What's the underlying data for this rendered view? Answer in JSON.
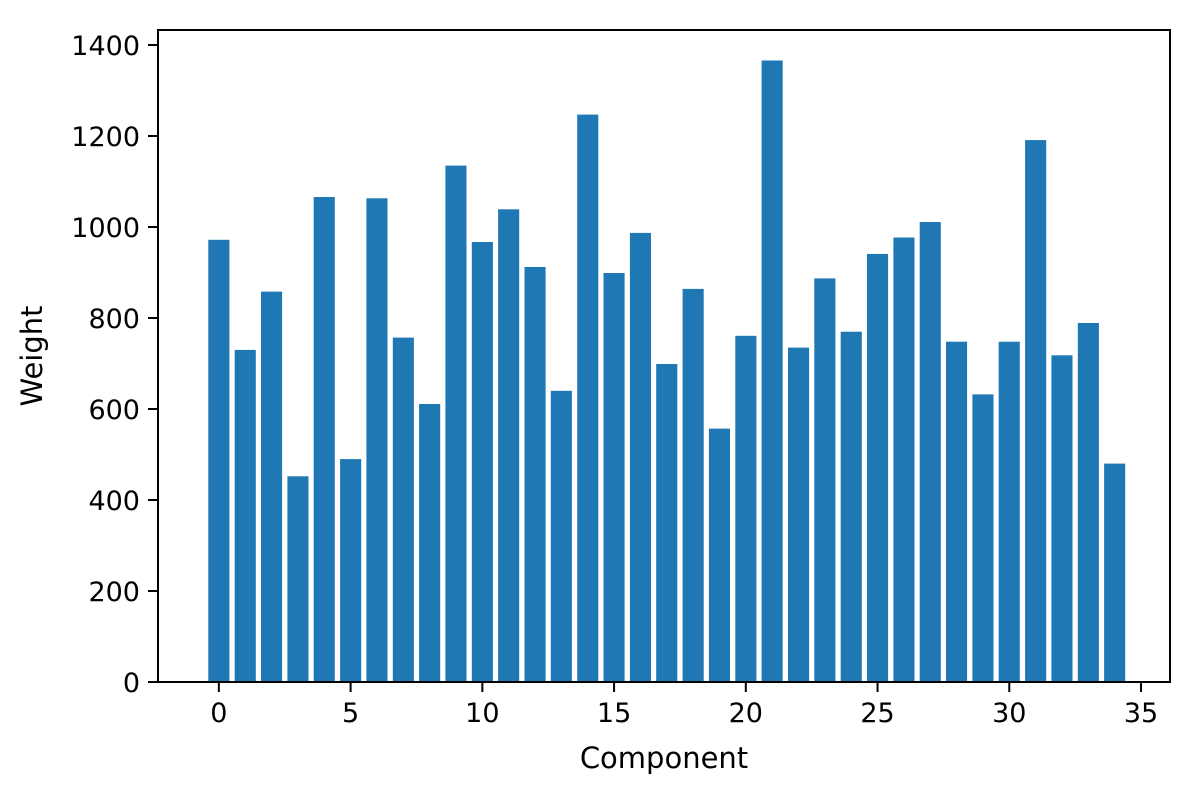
{
  "chart_data": {
    "type": "bar",
    "title": "",
    "xlabel": "Component",
    "ylabel": "Weight",
    "x": [
      0,
      1,
      2,
      3,
      4,
      5,
      6,
      7,
      8,
      9,
      10,
      11,
      12,
      13,
      14,
      15,
      16,
      17,
      18,
      19,
      20,
      21,
      22,
      23,
      24,
      25,
      26,
      27,
      28,
      29,
      30,
      31,
      32,
      33,
      34
    ],
    "values": [
      972,
      730,
      858,
      452,
      1066,
      490,
      1063,
      757,
      611,
      1135,
      967,
      1039,
      912,
      640,
      1247,
      899,
      987,
      699,
      864,
      557,
      761,
      1366,
      735,
      887,
      770,
      941,
      977,
      1011,
      748,
      632,
      748,
      1191,
      718,
      789,
      480
    ],
    "xticks": [
      0,
      5,
      10,
      15,
      20,
      25,
      30,
      35
    ],
    "yticks": [
      0,
      200,
      400,
      600,
      800,
      1000,
      1200,
      1400
    ],
    "xlim": [
      -2.31,
      36.1
    ],
    "ylim": [
      0,
      1433
    ],
    "bar_width": 0.8,
    "bar_color": "#1f77b4",
    "axis_color": "#000000",
    "background_color": "#ffffff",
    "grid": false,
    "legend": null
  }
}
